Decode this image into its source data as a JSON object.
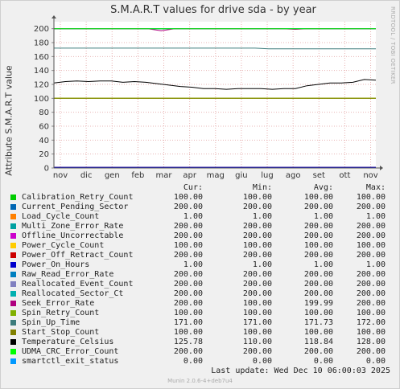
{
  "chart_data": {
    "type": "line",
    "title": "S.M.A.R.T values for drive sda - by year",
    "ylabel": "Attribute S.M.A.R.T value",
    "ylim": [
      0,
      210
    ],
    "y_ticks": [
      0,
      20,
      40,
      60,
      80,
      100,
      120,
      140,
      160,
      180,
      200
    ],
    "x_tick_labels": [
      "nov",
      "dic",
      "gen",
      "feb",
      "mar",
      "apr",
      "mag",
      "giu",
      "lug",
      "ago",
      "set",
      "ott",
      "nov"
    ],
    "grid": true,
    "side_label": "RRDTOOL / TOBI OETIKER",
    "legend_headers": [
      "Cur:",
      "Min:",
      "Avg:",
      "Max:"
    ],
    "series": [
      {
        "name": "Calibration_Retry_Count",
        "color": "#00cc00",
        "cur": "100.00",
        "min": "100.00",
        "avg": "100.00",
        "max": "100.00",
        "values": [
          100,
          100
        ]
      },
      {
        "name": "Current_Pending_Sector",
        "color": "#0066b3",
        "cur": "200.00",
        "min": "200.00",
        "avg": "200.00",
        "max": "200.00",
        "values": [
          200,
          200
        ]
      },
      {
        "name": "Load_Cycle_Count",
        "color": "#ff8000",
        "cur": "1.00",
        "min": "1.00",
        "avg": "1.00",
        "max": "1.00",
        "values": [
          1,
          1
        ]
      },
      {
        "name": "Multi_Zone_Error_Rate",
        "color": "#00a0a0",
        "cur": "200.00",
        "min": "200.00",
        "avg": "200.00",
        "max": "200.00",
        "values": [
          200,
          200
        ]
      },
      {
        "name": "Offline_Uncorrectable",
        "color": "#cc00cc",
        "cur": "200.00",
        "min": "200.00",
        "avg": "200.00",
        "max": "200.00",
        "values": [
          200,
          200
        ]
      },
      {
        "name": "Power_Cycle_Count",
        "color": "#ffcc00",
        "cur": "100.00",
        "min": "100.00",
        "avg": "100.00",
        "max": "100.00",
        "values": [
          100,
          100
        ]
      },
      {
        "name": "Power_Off_Retract_Count",
        "color": "#cc0000",
        "cur": "200.00",
        "min": "200.00",
        "avg": "200.00",
        "max": "200.00",
        "values": [
          200,
          200
        ]
      },
      {
        "name": "Power_On_Hours",
        "color": "#0000cc",
        "cur": "1.00",
        "min": "1.00",
        "avg": "1.00",
        "max": "1.00",
        "values": [
          1,
          1
        ]
      },
      {
        "name": "Raw_Read_Error_Rate",
        "color": "#0080c0",
        "cur": "200.00",
        "min": "200.00",
        "avg": "200.00",
        "max": "200.00",
        "values": [
          200,
          200
        ]
      },
      {
        "name": "Reallocated_Event_Count",
        "color": "#8080c0",
        "cur": "200.00",
        "min": "200.00",
        "avg": "200.00",
        "max": "200.00",
        "values": [
          200,
          200
        ]
      },
      {
        "name": "Reallocated_Sector_Ct",
        "color": "#00b0b0",
        "cur": "200.00",
        "min": "200.00",
        "avg": "200.00",
        "max": "200.00",
        "values": [
          200,
          200
        ]
      },
      {
        "name": "Seek_Error_Rate",
        "color": "#b00080",
        "cur": "200.00",
        "min": "100.00",
        "avg": "199.99",
        "max": "200.00",
        "values": [
          200,
          200,
          200,
          200,
          200,
          200,
          200,
          200,
          197,
          200,
          200,
          200,
          200,
          200,
          200,
          200,
          200,
          200,
          199,
          200,
          200,
          200,
          200,
          200,
          200
        ]
      },
      {
        "name": "Spin_Retry_Count",
        "color": "#80b000",
        "cur": "100.00",
        "min": "100.00",
        "avg": "100.00",
        "max": "100.00",
        "values": [
          100,
          100
        ]
      },
      {
        "name": "Spin_Up_Time",
        "color": "#3d7c7c",
        "cur": "171.00",
        "min": "171.00",
        "avg": "171.73",
        "max": "172.00",
        "values": [
          172,
          172,
          172,
          172,
          172,
          172,
          172,
          172,
          172,
          172,
          172,
          172,
          172,
          172,
          172,
          172,
          171,
          171,
          171,
          171,
          171,
          171,
          171,
          171,
          171
        ]
      },
      {
        "name": "Start_Stop_Count",
        "color": "#808000",
        "cur": "100.00",
        "min": "100.00",
        "avg": "100.00",
        "max": "100.00",
        "values": [
          100,
          100
        ]
      },
      {
        "name": "Temperature_Celsius",
        "color": "#000000",
        "cur": "125.78",
        "min": "110.00",
        "avg": "118.84",
        "max": "128.00",
        "values": [
          122,
          124,
          125,
          124,
          125,
          125,
          123,
          124,
          123,
          121,
          119,
          117,
          116,
          114,
          114,
          113,
          114,
          114,
          114,
          113,
          114,
          114,
          118,
          120,
          122,
          122,
          123,
          127,
          126
        ]
      },
      {
        "name": "UDMA_CRC_Error_Count",
        "color": "#00ff00",
        "cur": "200.00",
        "min": "200.00",
        "avg": "200.00",
        "max": "200.00",
        "values": [
          200,
          200
        ]
      },
      {
        "name": "smartctl_exit_status",
        "color": "#0099ff",
        "cur": "0.00",
        "min": "0.00",
        "avg": "0.00",
        "max": "0.00",
        "values": [
          0,
          0
        ]
      }
    ]
  },
  "footer": {
    "last_update": "Last update: Wed Dec 10 06:00:03 2025",
    "munin_version": "Munin 2.0.6-4+deb7u4"
  }
}
